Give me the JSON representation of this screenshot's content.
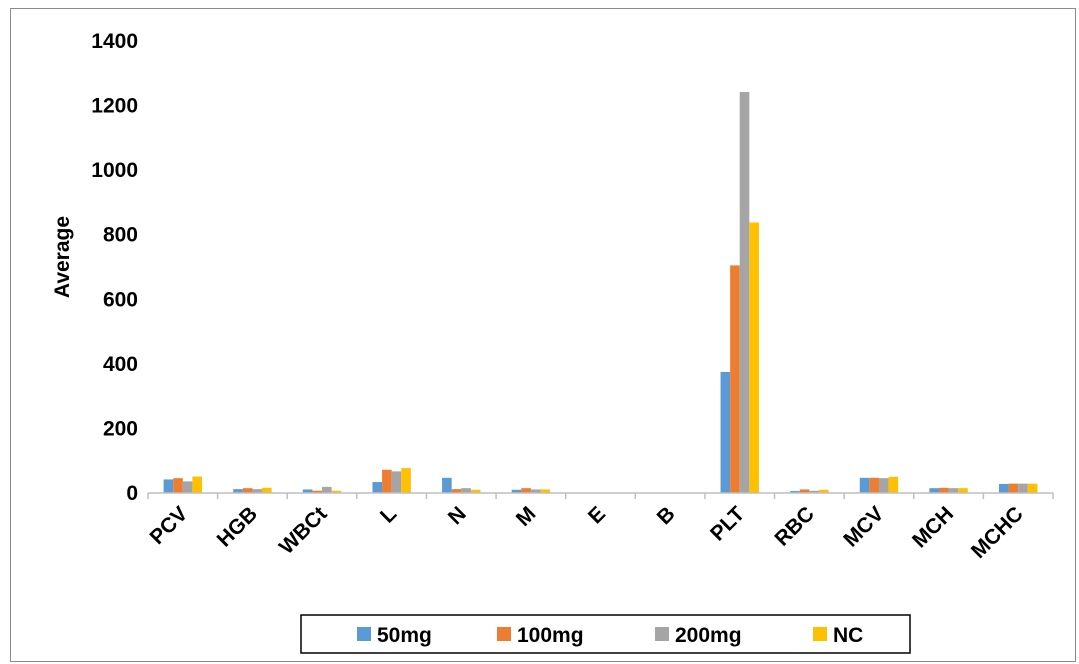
{
  "chart_data": {
    "type": "bar",
    "title": "",
    "xlabel": "",
    "ylabel": "Average",
    "ylim": [
      0,
      1400
    ],
    "yticks": [
      0,
      200,
      400,
      600,
      800,
      1000,
      1200,
      1400
    ],
    "grid": false,
    "legend_position": "bottom",
    "categories": [
      "PCV",
      "HGB",
      "WBCt",
      "L",
      "N",
      "M",
      "E",
      "B",
      "PLT",
      "RBC",
      "MCV",
      "MCH",
      "MCHC"
    ],
    "series": [
      {
        "name": "50mg",
        "color": "#5B9BD5",
        "values": [
          42,
          12,
          11,
          34,
          47,
          10,
          0,
          0,
          375,
          6,
          47,
          15,
          28
        ]
      },
      {
        "name": "100mg",
        "color": "#ED7D31",
        "values": [
          46,
          15,
          7,
          72,
          12,
          15,
          0,
          0,
          705,
          11,
          47,
          16,
          29
        ]
      },
      {
        "name": "200mg",
        "color": "#A5A5A5",
        "values": [
          36,
          12,
          19,
          67,
          15,
          11,
          0,
          0,
          1242,
          7,
          46,
          15,
          29
        ]
      },
      {
        "name": "NC",
        "color": "#FFC000",
        "values": [
          51,
          16,
          7,
          77,
          10,
          11,
          0,
          0,
          838,
          10,
          50,
          15,
          29
        ]
      }
    ]
  }
}
